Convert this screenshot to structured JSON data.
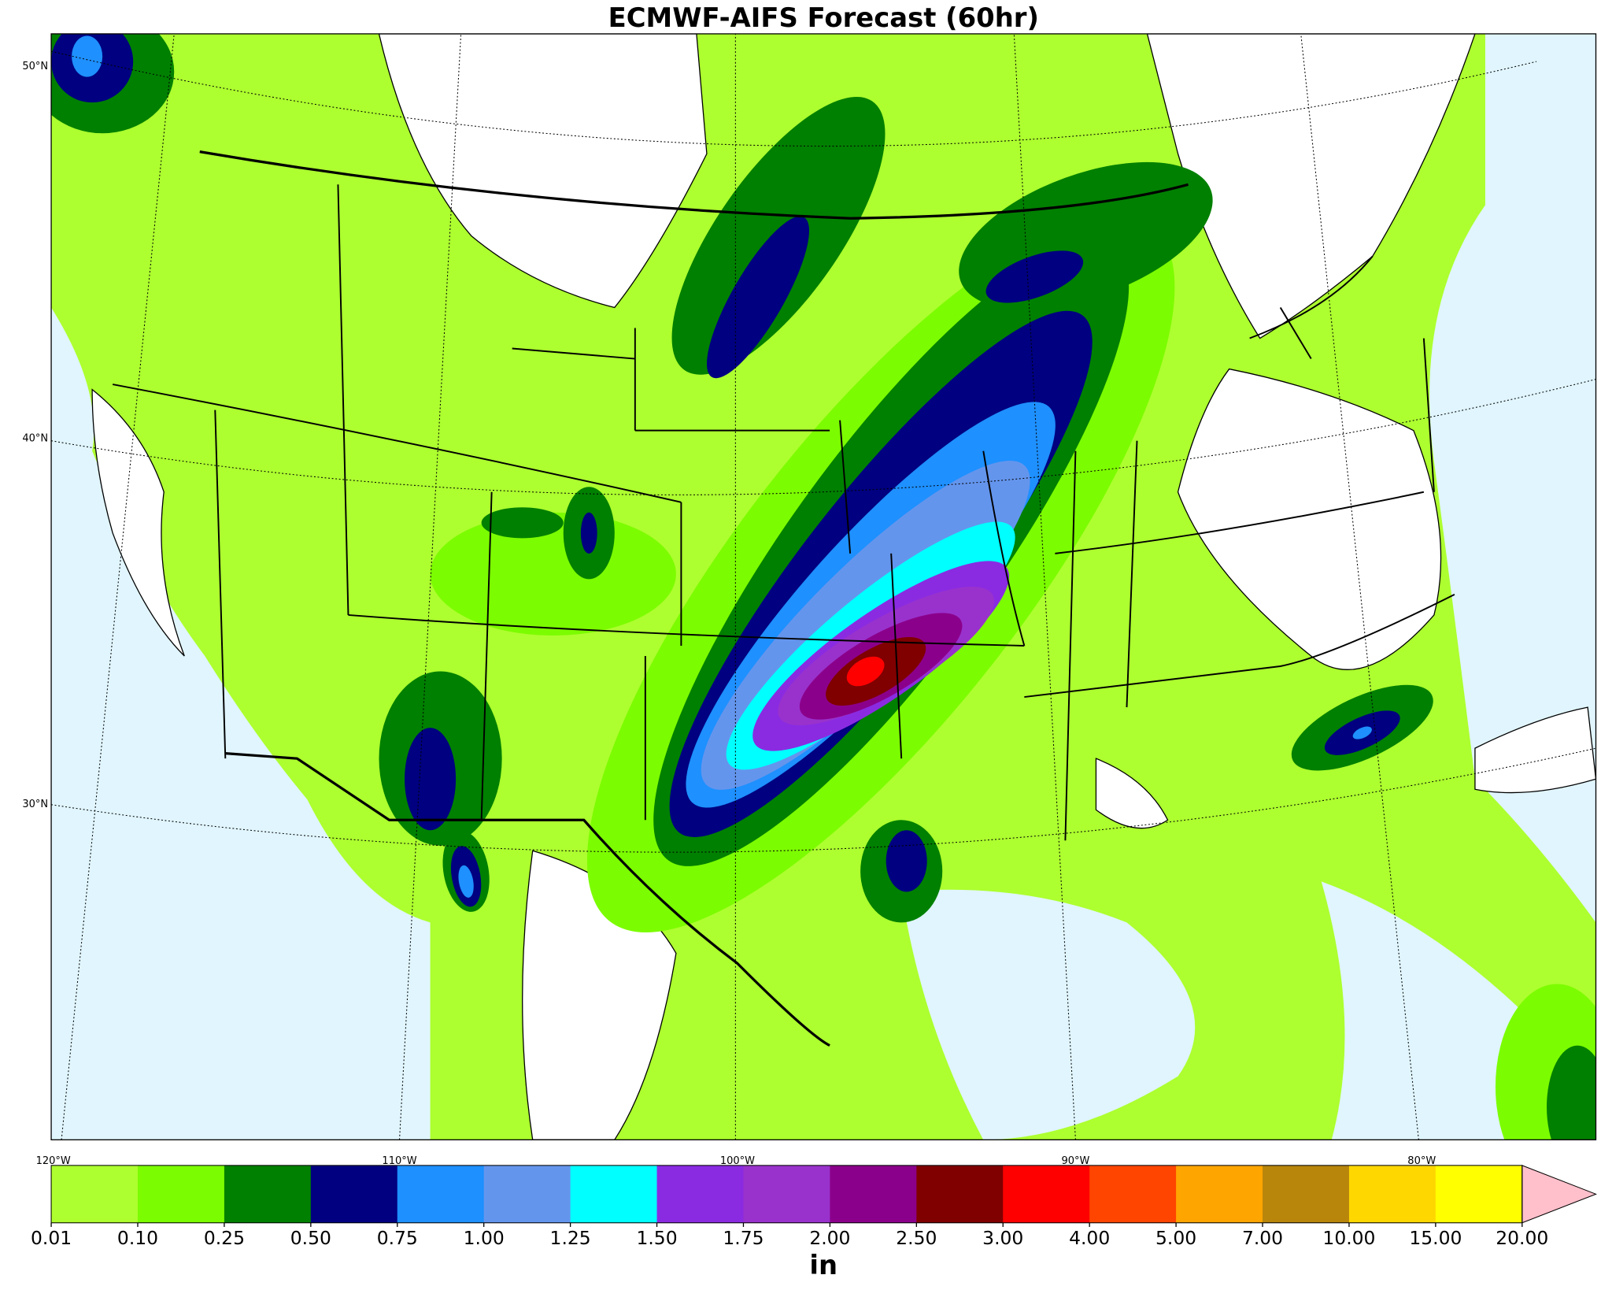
{
  "map": {
    "title": "ECMWF-AIFS Forecast (60hr)",
    "lat_labels": [
      "50°N",
      "40°N",
      "30°N"
    ],
    "lon_labels": [
      "120°W",
      "110°W",
      "100°W",
      "90°W",
      "80°W"
    ],
    "colorbar": {
      "label": "in",
      "ticks": [
        {
          "value": 0.01,
          "label": "0.01"
        },
        {
          "value": 0.1,
          "label": "0.10"
        },
        {
          "value": 0.25,
          "label": "0.25"
        },
        {
          "value": 0.5,
          "label": "0.50"
        },
        {
          "value": 0.75,
          "label": "0.75"
        },
        {
          "value": 1,
          "label": "1.00"
        },
        {
          "value": 1.25,
          "label": "1.25"
        },
        {
          "value": 1.5,
          "label": "1.50"
        },
        {
          "value": 1.75,
          "label": "1.75"
        },
        {
          "value": 2,
          "label": "2.00"
        },
        {
          "value": 2.5,
          "label": "2.50"
        },
        {
          "value": 3,
          "label": "3.00"
        },
        {
          "value": 4,
          "label": "4.00"
        },
        {
          "value": 5,
          "label": "5.00"
        },
        {
          "value": 7,
          "label": "7.00"
        },
        {
          "value": 10,
          "label": "10.00"
        },
        {
          "value": 15,
          "label": "15.00"
        },
        {
          "value": 20,
          "label": "20.00"
        }
      ],
      "colors": [
        "#adff2f",
        "#7cfc00",
        "#008000",
        "#000080",
        "#1e90ff",
        "#6495ed",
        "#00ffff",
        "#8a2be2",
        "#9932cc",
        "#8b008b",
        "#800000",
        "#ff0000",
        "#ff4500",
        "#ffa500",
        "#b8860b",
        "#ffd700",
        "#ffff00"
      ],
      "extend_color": "#ffc0cb"
    }
  }
}
